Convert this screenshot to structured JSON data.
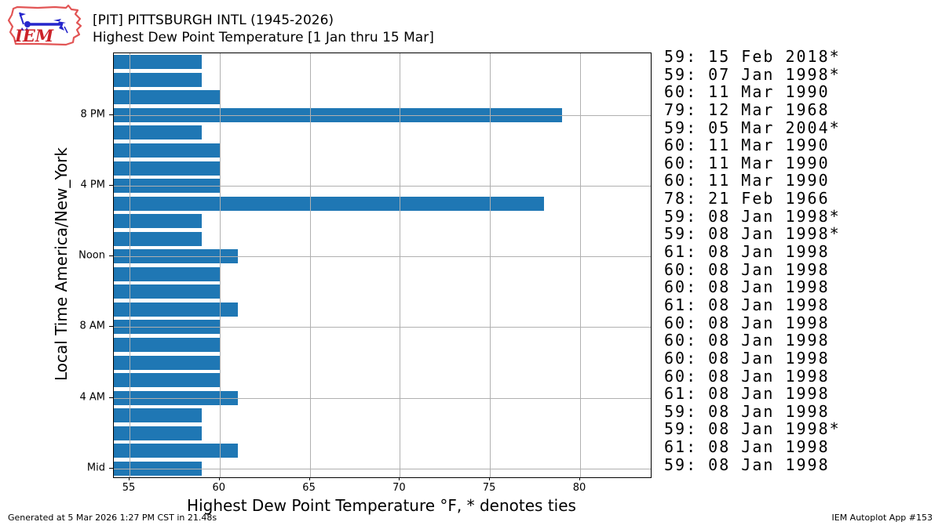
{
  "header": {
    "logo_text": "IEM",
    "title_line1": "[PIT] PITTSBURGH INTL (1945-2026)",
    "title_line2": "Highest Dew Point Temperature [1 Jan thru 15 Mar]"
  },
  "chart_data": {
    "type": "bar",
    "orientation": "horizontal",
    "title": "[PIT] PITTSBURGH INTL (1945-2026) — Highest Dew Point Temperature [1 Jan thru 15 Mar]",
    "xlabel": "Highest Dew Point Temperature °F, * denotes ties",
    "ylabel": "Local Time America/New_York",
    "xlim": [
      54.13,
      83.92
    ],
    "xticks": [
      55,
      60,
      65,
      70,
      75,
      80
    ],
    "yticks": [
      {
        "hour": 0,
        "label": "Mid"
      },
      {
        "hour": 4,
        "label": "4 AM"
      },
      {
        "hour": 8,
        "label": "8 AM"
      },
      {
        "hour": 12,
        "label": "Noon"
      },
      {
        "hour": 16,
        "label": "4 PM"
      },
      {
        "hour": 20,
        "label": "8 PM"
      }
    ],
    "grid": true,
    "bar_color": "#1f77b4",
    "grid_color": "#b0b0b0",
    "rows": [
      {
        "hour": 23,
        "value": 59,
        "annotation": "59: 15 Feb 2018*"
      },
      {
        "hour": 22,
        "value": 59,
        "annotation": "59: 07 Jan 1998*"
      },
      {
        "hour": 21,
        "value": 60,
        "annotation": "60: 11 Mar 1990"
      },
      {
        "hour": 20,
        "value": 79,
        "annotation": "79: 12 Mar 1968"
      },
      {
        "hour": 19,
        "value": 59,
        "annotation": "59: 05 Mar 2004*"
      },
      {
        "hour": 18,
        "value": 60,
        "annotation": "60: 11 Mar 1990"
      },
      {
        "hour": 17,
        "value": 60,
        "annotation": "60: 11 Mar 1990"
      },
      {
        "hour": 16,
        "value": 60,
        "annotation": "60: 11 Mar 1990"
      },
      {
        "hour": 15,
        "value": 78,
        "annotation": "78: 21 Feb 1966"
      },
      {
        "hour": 14,
        "value": 59,
        "annotation": "59: 08 Jan 1998*"
      },
      {
        "hour": 13,
        "value": 59,
        "annotation": "59: 08 Jan 1998*"
      },
      {
        "hour": 12,
        "value": 61,
        "annotation": "61: 08 Jan 1998"
      },
      {
        "hour": 11,
        "value": 60,
        "annotation": "60: 08 Jan 1998"
      },
      {
        "hour": 10,
        "value": 60,
        "annotation": "60: 08 Jan 1998"
      },
      {
        "hour": 9,
        "value": 61,
        "annotation": "61: 08 Jan 1998"
      },
      {
        "hour": 8,
        "value": 60,
        "annotation": "60: 08 Jan 1998"
      },
      {
        "hour": 7,
        "value": 60,
        "annotation": "60: 08 Jan 1998"
      },
      {
        "hour": 6,
        "value": 60,
        "annotation": "60: 08 Jan 1998"
      },
      {
        "hour": 5,
        "value": 60,
        "annotation": "60: 08 Jan 1998"
      },
      {
        "hour": 4,
        "value": 61,
        "annotation": "61: 08 Jan 1998"
      },
      {
        "hour": 3,
        "value": 59,
        "annotation": "59: 08 Jan 1998"
      },
      {
        "hour": 2,
        "value": 59,
        "annotation": "59: 08 Jan 1998*"
      },
      {
        "hour": 1,
        "value": 61,
        "annotation": "61: 08 Jan 1998"
      },
      {
        "hour": 0,
        "value": 59,
        "annotation": "59: 08 Jan 1998"
      }
    ]
  },
  "footer": {
    "left": "Generated at 5 Mar 2026 1:27 PM CST in 21.48s",
    "right": "IEM Autoplot App #153"
  }
}
